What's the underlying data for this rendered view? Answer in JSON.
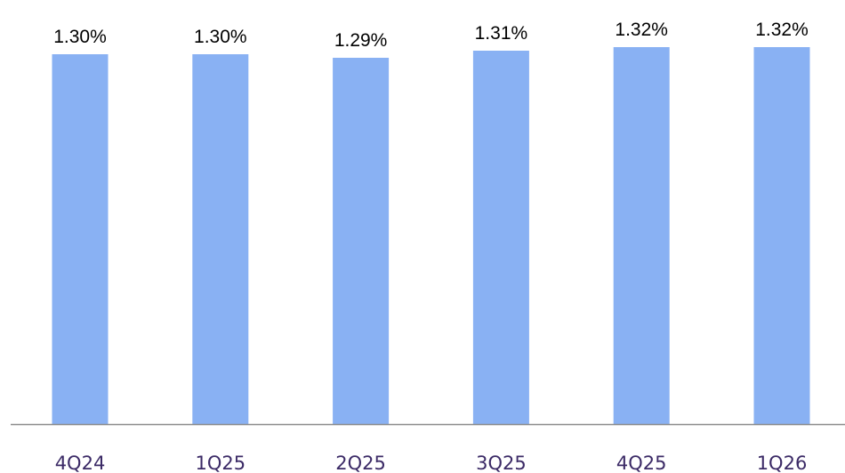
{
  "chart_data": {
    "type": "bar",
    "categories": [
      "4Q24",
      "1Q25",
      "2Q25",
      "3Q25",
      "4Q25",
      "1Q26"
    ],
    "values": [
      1.3,
      1.3,
      1.29,
      1.31,
      1.32,
      1.32
    ],
    "value_labels": [
      "1.30%",
      "1.30%",
      "1.29%",
      "1.31%",
      "1.32%",
      "1.32%"
    ],
    "title": "",
    "xlabel": "",
    "ylabel": "",
    "grid": false,
    "legend": "none",
    "colors": {
      "bar": "#89b1f3",
      "value_label": "#000000",
      "tick_label": "#3b2a66",
      "axis": "#8c8c8c"
    }
  }
}
